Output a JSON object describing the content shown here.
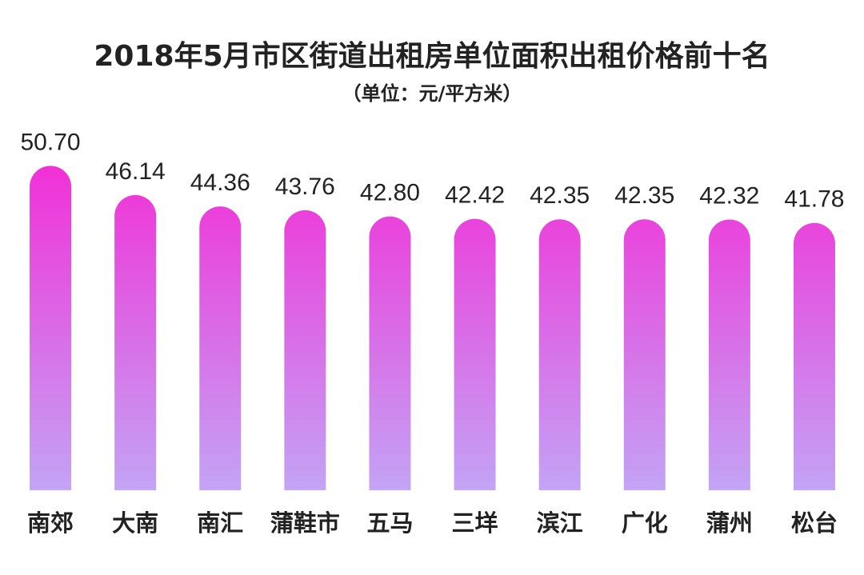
{
  "chart_data": {
    "type": "bar",
    "title": "2018年5月市区街道出租房单位面积出租价格前十名",
    "subtitle": "（单位：元/平方米）",
    "categories": [
      "南郊",
      "大南",
      "南汇",
      "蒲鞋市",
      "五马",
      "三垟",
      "滨江",
      "广化",
      "蒲州",
      "松台"
    ],
    "values": [
      50.7,
      46.14,
      44.36,
      43.76,
      42.8,
      42.42,
      42.35,
      42.35,
      42.32,
      41.78
    ],
    "value_labels": [
      "50.70",
      "46.14",
      "44.36",
      "43.76",
      "42.80",
      "42.42",
      "42.35",
      "42.35",
      "42.32",
      "41.78"
    ],
    "color": "#f22ed6",
    "ylim": [
      0,
      60
    ]
  }
}
